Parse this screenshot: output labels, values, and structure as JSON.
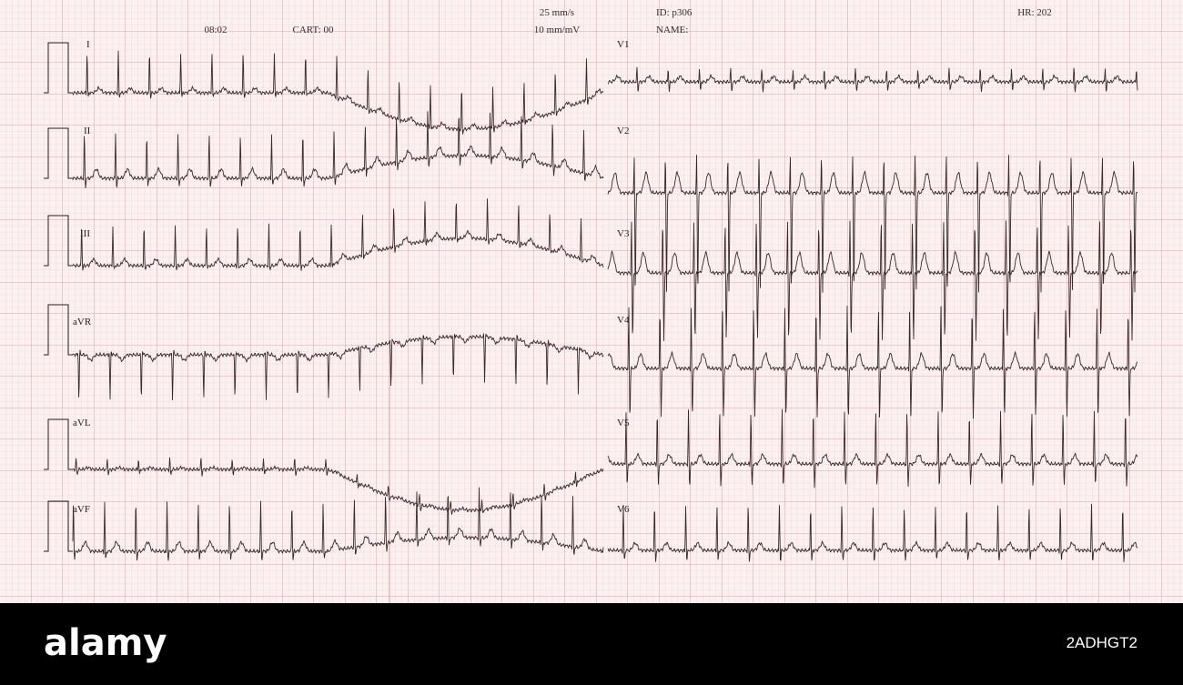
{
  "header": {
    "time": "08:02",
    "cart": "CART: 00",
    "speed": "25 mm/s",
    "gain": "10 mm/mV",
    "id": "ID: p306",
    "name": "NAME:",
    "hr": "HR: 202"
  },
  "leads": [
    "I",
    "II",
    "III",
    "aVR",
    "aVL",
    "aVF",
    "V1",
    "V2",
    "V3",
    "V4",
    "V5",
    "V6"
  ],
  "footer": {
    "logo": "alamy",
    "code": "2ADHGT2"
  }
}
